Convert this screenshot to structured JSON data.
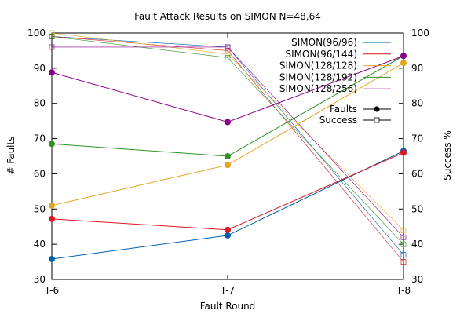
{
  "chart_data": {
    "type": "line",
    "title": "Fault Attack Results on SIMON N=48,64",
    "xlabel": "Fault Round",
    "ylabel": "# Faults",
    "y2label": "Success %",
    "categories": [
      "T-6",
      "T-7",
      "T-8"
    ],
    "ylim": [
      30,
      100
    ],
    "y2lim": [
      30,
      100
    ],
    "yticks": [
      30,
      40,
      50,
      60,
      70,
      80,
      90,
      100
    ],
    "grid": false,
    "legend_position": "top-right",
    "series": [
      {
        "name": "SIMON(96/96)",
        "color": "#0060ad",
        "faults": [
          35.8,
          42.5,
          66.5
        ],
        "success": [
          99.0,
          96.0,
          37.0
        ]
      },
      {
        "name": "SIMON(96/144)",
        "color": "#dd181f",
        "faults": [
          47.2,
          44.1,
          66.0
        ],
        "success": [
          99.0,
          95.0,
          35.0
        ]
      },
      {
        "name": "SIMON(128/128)",
        "color": "#e3a51d",
        "faults": [
          51.0,
          62.5,
          91.5
        ],
        "success": [
          100.0,
          94.0,
          44.0
        ]
      },
      {
        "name": "SIMON(128/192)",
        "color": "#2f9126",
        "faults": [
          68.5,
          65.0,
          93.5
        ],
        "success": [
          99.0,
          93.0,
          40.0
        ]
      },
      {
        "name": "SIMON(128/256)",
        "color": "#8b008b",
        "faults": [
          88.8,
          74.7,
          93.5
        ],
        "success": [
          96.0,
          96.0,
          42.0
        ]
      }
    ],
    "marker_legend": [
      {
        "label": "Faults",
        "marker": "filled-circle"
      },
      {
        "label": "Success",
        "marker": "open-square"
      }
    ]
  }
}
